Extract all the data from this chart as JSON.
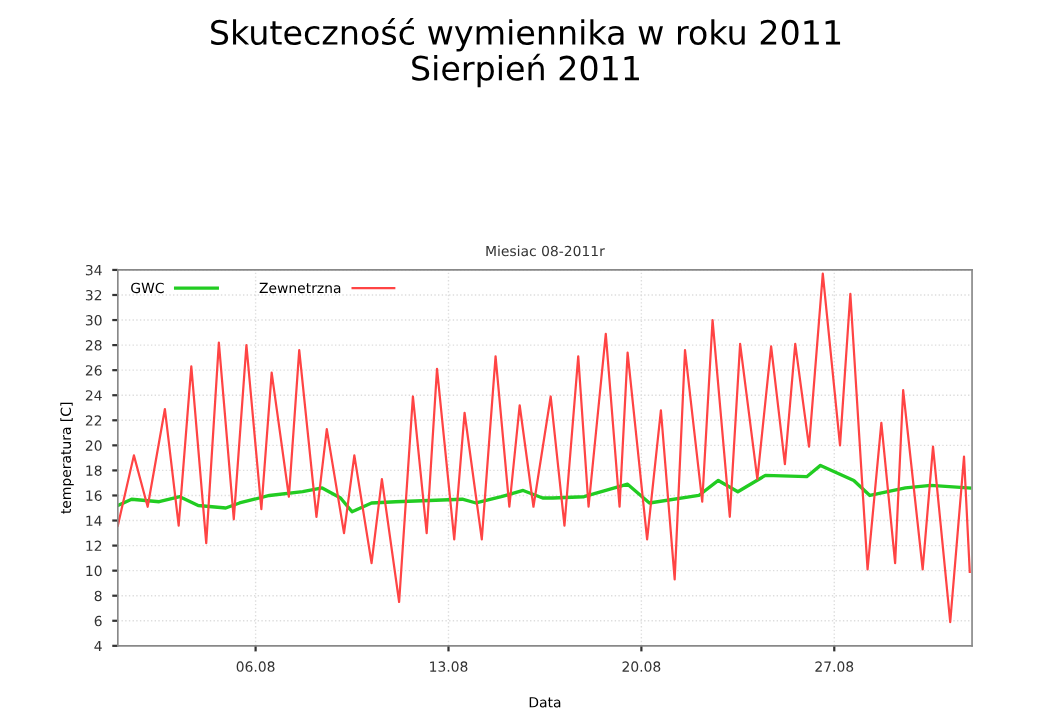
{
  "chart_data": {
    "type": "line",
    "title": "Skuteczność wymiennika w roku 2011",
    "subtitle": "Sierpień 2011",
    "annotations": [
      "Miesiac 08-2011r"
    ],
    "xlabel": "Data",
    "ylabel": "temperatura [C]",
    "xlim": [
      "2011-08-01",
      "2011-09-01"
    ],
    "xticks": [
      {
        "value": "2011-08-06",
        "label": "06.08"
      },
      {
        "value": "2011-08-13",
        "label": "13.08"
      },
      {
        "value": "2011-08-20",
        "label": "20.08"
      },
      {
        "value": "2011-08-27",
        "label": "27.08"
      }
    ],
    "ylim": [
      4,
      34
    ],
    "yticks": [
      4,
      6,
      8,
      10,
      12,
      14,
      16,
      18,
      20,
      22,
      24,
      26,
      28,
      30,
      32,
      34
    ],
    "grid": true,
    "legend": "top left",
    "line_style": "solid",
    "marker": "none",
    "series": [
      {
        "name": "GWC",
        "color": "#22cc22",
        "x": [
          "2011-08-01T00:00",
          "2011-08-01T12:00",
          "2011-08-02T12:00",
          "2011-08-03T06:00",
          "2011-08-03T22:00",
          "2011-08-04T22:00",
          "2011-08-05T10:00",
          "2011-08-06T12:00",
          "2011-08-07T17:00",
          "2011-08-08T10:00",
          "2011-08-09T02:00",
          "2011-08-09T12:00",
          "2011-08-10T05:00",
          "2011-08-11T02:00",
          "2011-08-12T07:00",
          "2011-08-13T12:00",
          "2011-08-14T00:00",
          "2011-08-14T22:00",
          "2011-08-15T17:00",
          "2011-08-16T10:00",
          "2011-08-16T19:00",
          "2011-08-17T22:00",
          "2011-08-19T12:00",
          "2011-08-20T07:00",
          "2011-08-22T02:00",
          "2011-08-22T19:00",
          "2011-08-23T12:00",
          "2011-08-24T12:00",
          "2011-08-26T00:00",
          "2011-08-26T12:00",
          "2011-08-27T17:00",
          "2011-08-28T07:00",
          "2011-08-29T14:00",
          "2011-08-30T12:00",
          "2011-08-31T22:00"
        ],
        "values": [
          15.2,
          15.7,
          15.5,
          15.9,
          15.2,
          15.0,
          15.4,
          16.0,
          16.3,
          16.6,
          15.8,
          14.7,
          15.4,
          15.5,
          15.6,
          15.7,
          15.4,
          15.9,
          16.4,
          15.8,
          15.8,
          15.9,
          16.9,
          15.4,
          16.0,
          17.2,
          16.3,
          17.6,
          17.5,
          18.4,
          17.2,
          16.0,
          16.6,
          16.8,
          16.6
        ]
      },
      {
        "name": "Zewnetrzna",
        "color": "#ff4444",
        "x": [
          "2011-08-01T00:00",
          "2011-08-01T14:00",
          "2011-08-02T02:00",
          "2011-08-02T17:00",
          "2011-08-03T05:00",
          "2011-08-03T16:00",
          "2011-08-04T05:00",
          "2011-08-04T16:00",
          "2011-08-05T05:00",
          "2011-08-05T16:00",
          "2011-08-06T05:00",
          "2011-08-06T14:00",
          "2011-08-07T05:00",
          "2011-08-07T14:00",
          "2011-08-08T05:00",
          "2011-08-08T14:00",
          "2011-08-09T05:00",
          "2011-08-09T14:00",
          "2011-08-10T05:00",
          "2011-08-10T14:00",
          "2011-08-11T05:00",
          "2011-08-11T17:00",
          "2011-08-12T05:00",
          "2011-08-12T14:00",
          "2011-08-13T05:00",
          "2011-08-13T14:00",
          "2011-08-14T05:00",
          "2011-08-14T17:00",
          "2011-08-15T05:00",
          "2011-08-15T14:00",
          "2011-08-16T02:00",
          "2011-08-16T17:00",
          "2011-08-17T05:00",
          "2011-08-17T17:00",
          "2011-08-18T02:00",
          "2011-08-18T17:00",
          "2011-08-19T05:00",
          "2011-08-19T12:00",
          "2011-08-20T05:00",
          "2011-08-20T17:00",
          "2011-08-21T05:00",
          "2011-08-21T14:00",
          "2011-08-22T05:00",
          "2011-08-22T14:00",
          "2011-08-23T05:00",
          "2011-08-23T14:00",
          "2011-08-24T05:00",
          "2011-08-24T17:00",
          "2011-08-25T05:00",
          "2011-08-25T14:00",
          "2011-08-26T02:00",
          "2011-08-26T14:00",
          "2011-08-27T05:00",
          "2011-08-27T14:00",
          "2011-08-28T05:00",
          "2011-08-28T17:00",
          "2011-08-29T05:00",
          "2011-08-29T12:00",
          "2011-08-30T05:00",
          "2011-08-30T14:00",
          "2011-08-31T05:00",
          "2011-08-31T17:00",
          "2011-08-31T22:00"
        ],
        "values": [
          13.6,
          19.2,
          15.1,
          22.9,
          13.6,
          26.3,
          12.2,
          28.2,
          14.1,
          28.0,
          14.9,
          25.8,
          15.9,
          27.6,
          14.3,
          21.3,
          13.0,
          19.2,
          10.6,
          17.3,
          7.5,
          23.9,
          13.0,
          26.1,
          12.5,
          22.6,
          12.5,
          27.1,
          15.1,
          23.2,
          15.1,
          23.9,
          13.6,
          27.1,
          15.1,
          28.9,
          15.1,
          27.4,
          12.5,
          22.8,
          9.3,
          27.6,
          15.5,
          30.0,
          14.3,
          28.1,
          17.3,
          27.9,
          18.5,
          28.1,
          19.9,
          33.7,
          20.0,
          32.1,
          10.1,
          21.8,
          10.6,
          24.4,
          10.1,
          19.9,
          5.9,
          19.1,
          9.9
        ]
      }
    ]
  }
}
